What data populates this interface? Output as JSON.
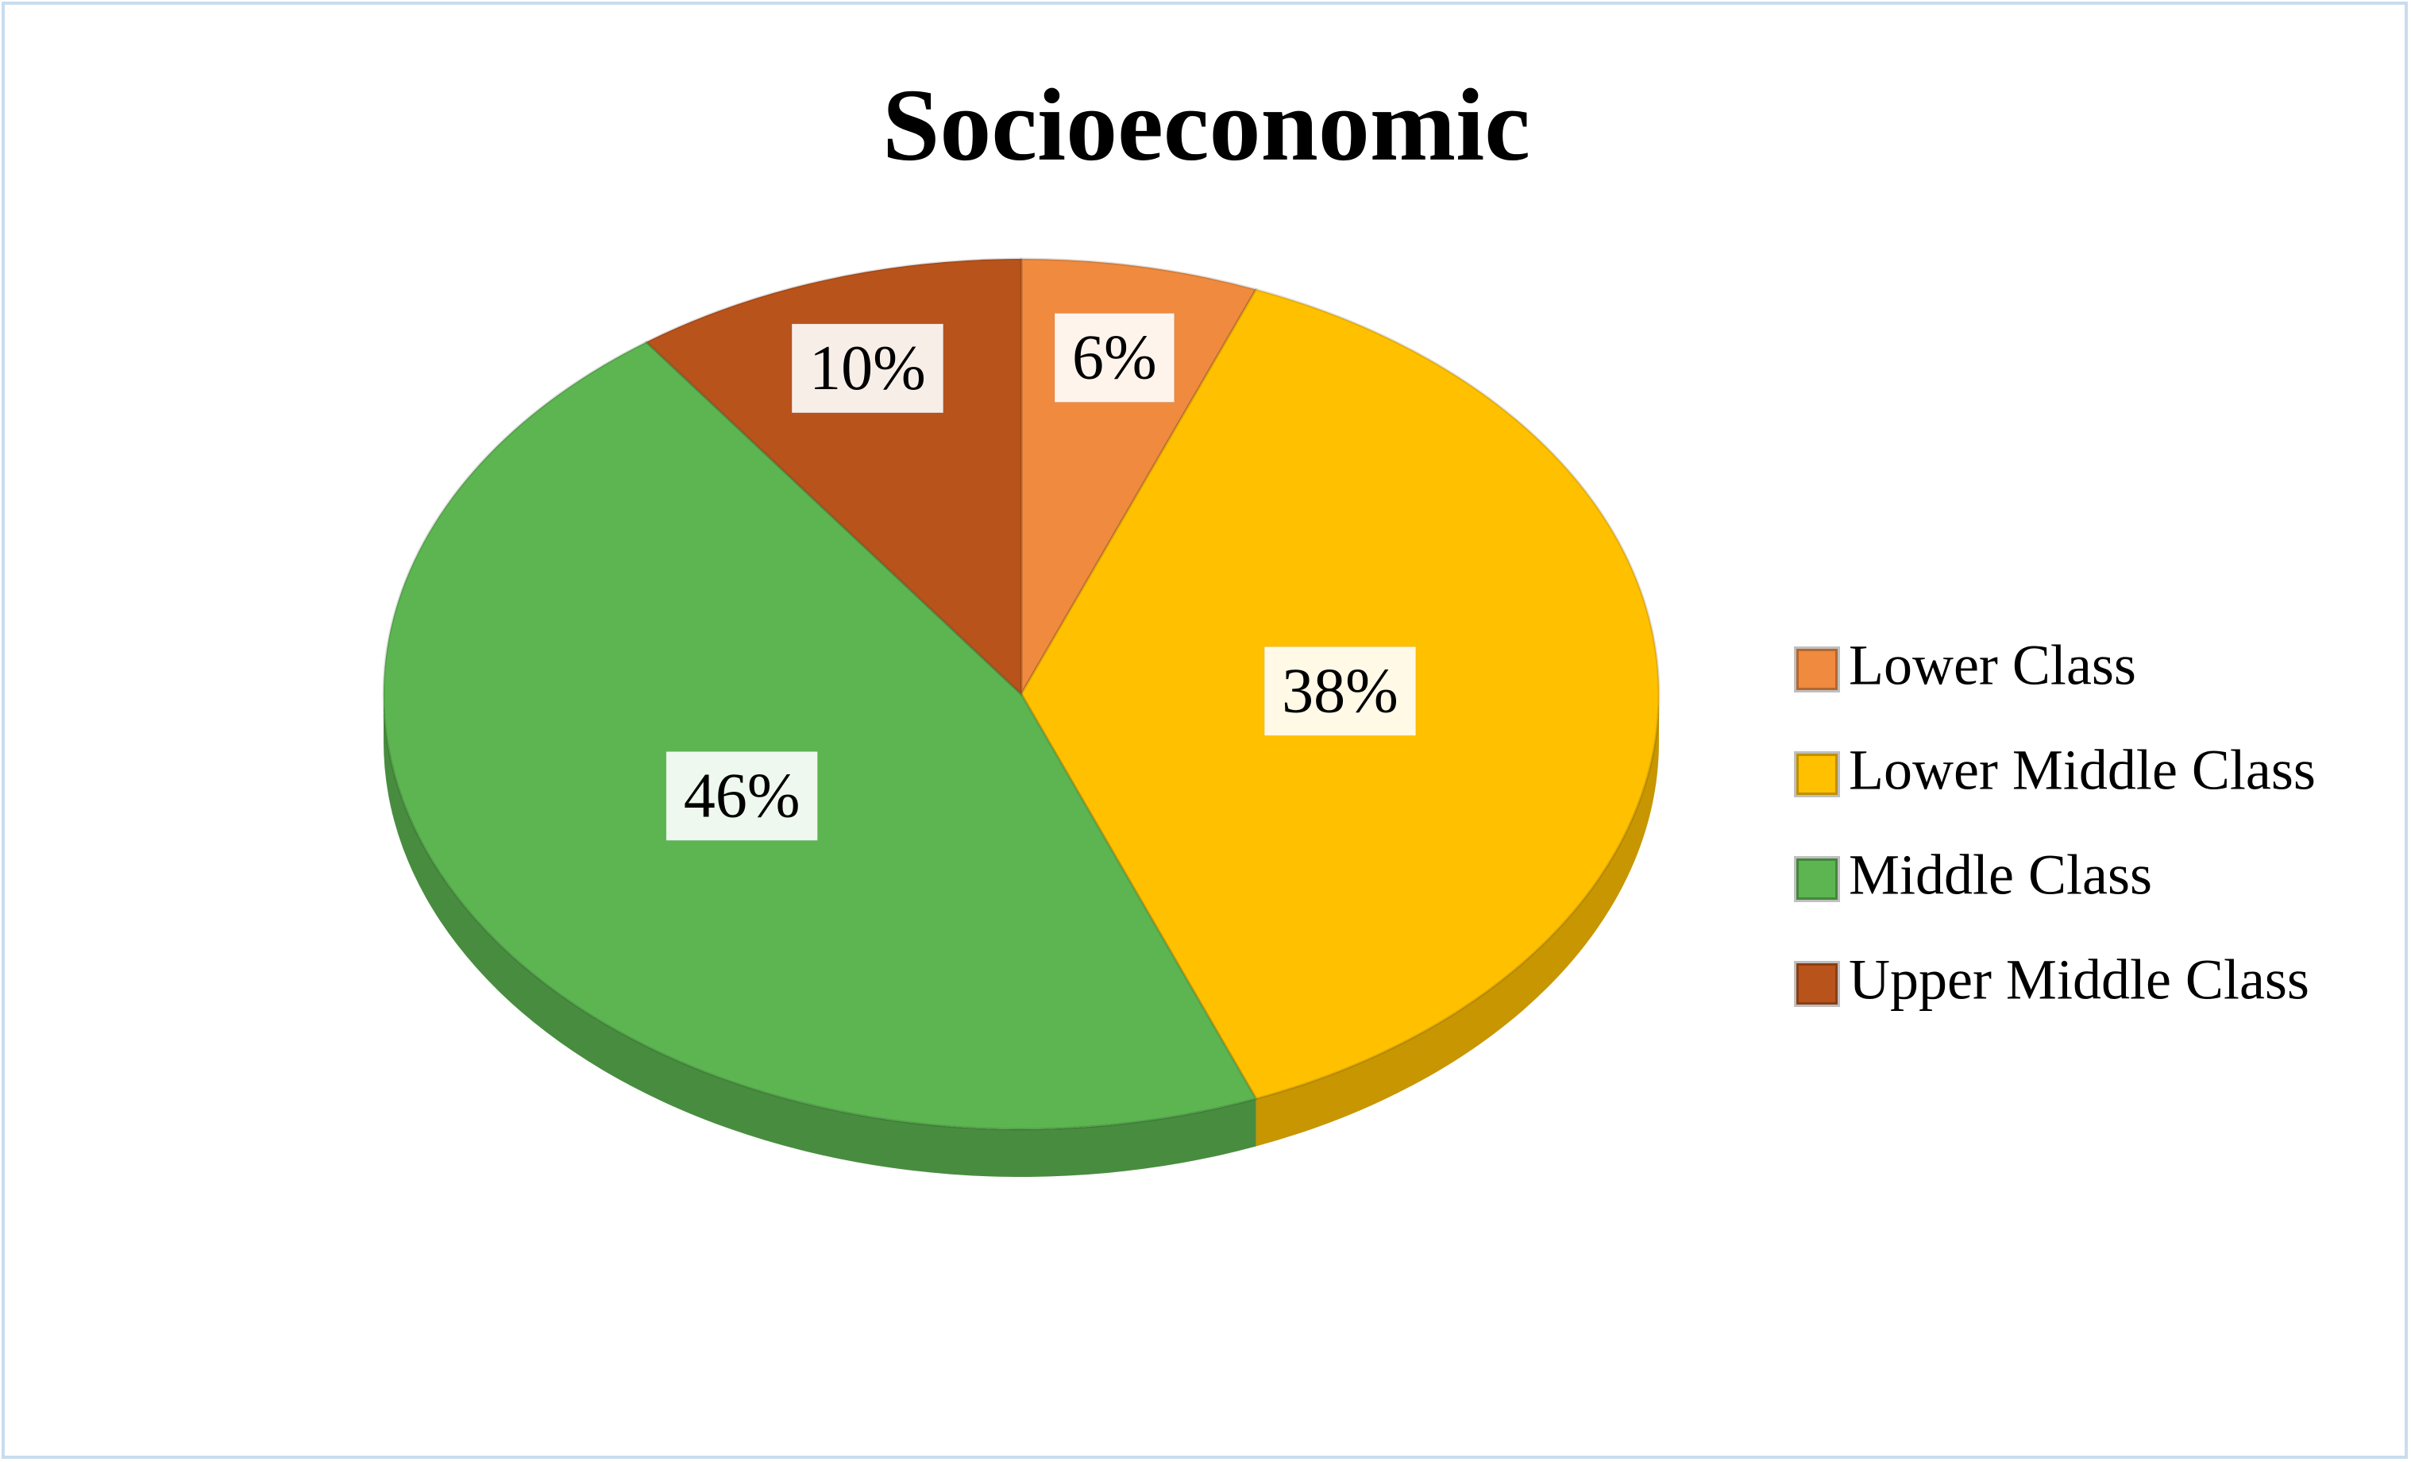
{
  "chart_data": {
    "type": "pie",
    "title": "Socioeconomic",
    "categories": [
      "Lower Class",
      "Lower Middle Class",
      "Middle Class",
      "Upper Middle Class"
    ],
    "values": [
      6,
      38,
      46,
      10
    ],
    "value_labels": [
      "6%",
      "38%",
      "46%",
      "10%"
    ],
    "colors": [
      "#f08a3e",
      "#ffc000",
      "#5cb551",
      "#b9531c"
    ],
    "legend": "right"
  }
}
